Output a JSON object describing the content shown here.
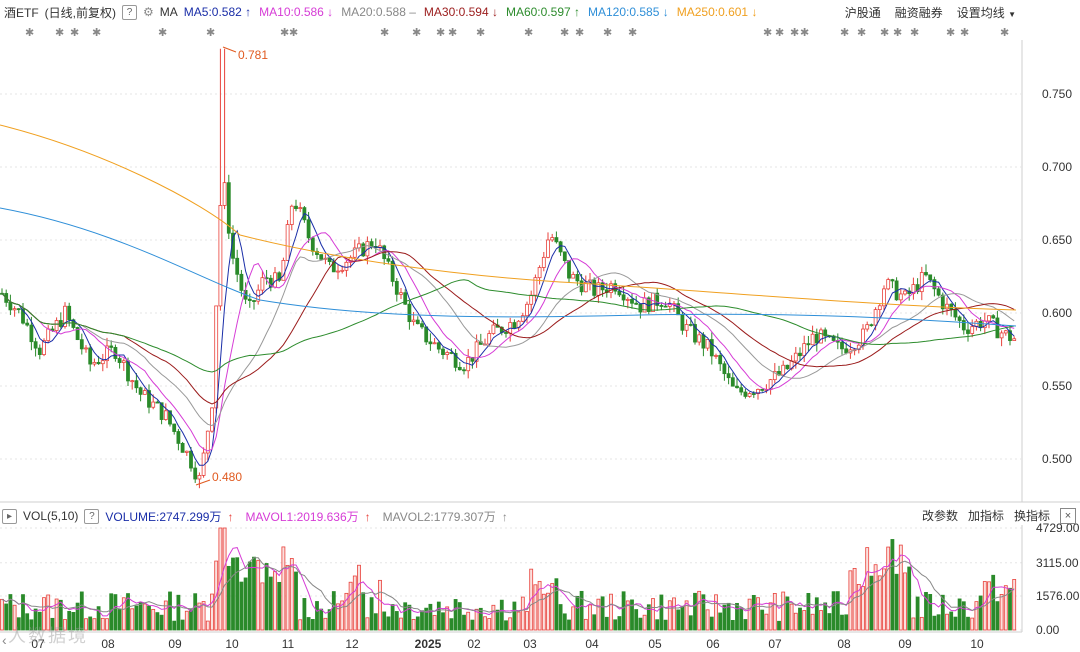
{
  "header": {
    "name": "酒ETF",
    "mode": "(日线,前复权)",
    "help": "?",
    "ma_label": "MA",
    "ma": [
      {
        "text": "MA5:0.582",
        "arrow": "↑",
        "color": "#1a2ea8"
      },
      {
        "text": "MA10:0.586",
        "arrow": "↓",
        "color": "#d63cd6"
      },
      {
        "text": "MA20:0.588",
        "arrow": "–",
        "color": "#888888"
      },
      {
        "text": "MA30:0.594",
        "arrow": "↓",
        "color": "#9b1c1c"
      },
      {
        "text": "MA60:0.597",
        "arrow": "↑",
        "color": "#2d8c2d"
      },
      {
        "text": "MA120:0.585",
        "arrow": "↓",
        "color": "#2f8fd8"
      },
      {
        "text": "MA250:0.601",
        "arrow": "↓",
        "color": "#f0a020"
      }
    ],
    "links": [
      "沪股通",
      "融资融券",
      "设置均线"
    ]
  },
  "price_axis": [
    "0.750",
    "0.700",
    "0.650",
    "0.600",
    "0.550",
    "0.500"
  ],
  "annotations": {
    "high": "0.781",
    "low": "0.480"
  },
  "volume_header": {
    "label": "VOL(5,10)",
    "volume": "VOLUME:2747.299万",
    "volume_arrow": "↑",
    "mavol1": "MAVOL1:2019.636万",
    "mavol1_arrow": "↑",
    "mavol2": "MAVOL2:1779.307万",
    "mavol2_arrow": "↑",
    "buttons": [
      "改参数",
      "加指标",
      "换指标"
    ],
    "close": "×"
  },
  "volume_axis": [
    "4729.00",
    "3115.00",
    "1576.00",
    "0.00"
  ],
  "x_axis": [
    "07",
    "08",
    "09",
    "10",
    "11",
    "12",
    "2025",
    "02",
    "03",
    "04",
    "05",
    "06",
    "07",
    "08",
    "09",
    "10"
  ],
  "watermark": "人数据境",
  "colors": {
    "up": "#e8413b",
    "down": "#2a8a2a",
    "grid": "#d8d8d8"
  }
}
